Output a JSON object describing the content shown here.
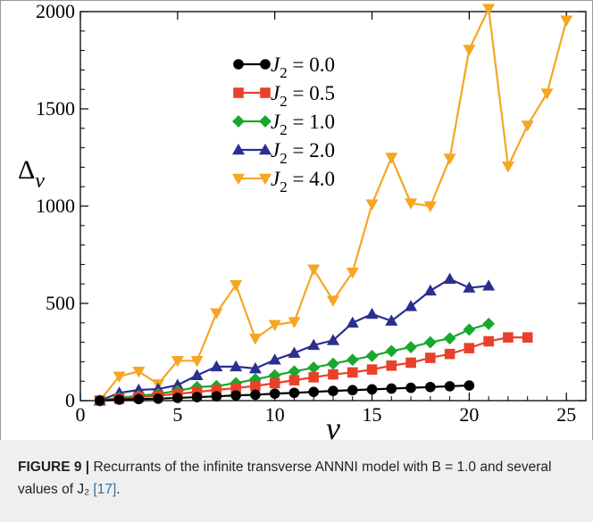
{
  "chart_data": {
    "type": "line",
    "xlabel": "ν",
    "ylabel": "Δ",
    "ylabel_sub": "ν",
    "xlim": [
      0,
      26
    ],
    "ylim": [
      0,
      2000
    ],
    "xticks": [
      0,
      5,
      10,
      15,
      20,
      25
    ],
    "yticks": [
      0,
      500,
      1000,
      1500,
      2000
    ],
    "legend_position": "top-center",
    "series": [
      {
        "name": "J2 = 0.0",
        "name_base": "J",
        "name_sub": "2",
        "name_value": " = 0.0",
        "color": "#000000",
        "marker": "circle",
        "x": [
          1,
          2,
          3,
          4,
          5,
          6,
          7,
          8,
          9,
          10,
          11,
          12,
          13,
          14,
          15,
          16,
          17,
          18,
          19,
          20
        ],
        "y": [
          0,
          5,
          8,
          10,
          14,
          18,
          22,
          27,
          30,
          36,
          40,
          45,
          50,
          54,
          58,
          62,
          66,
          70,
          74,
          78
        ]
      },
      {
        "name": "J2 = 0.5",
        "name_base": "J",
        "name_sub": "2",
        "name_value": " = 0.5",
        "color": "#e8412b",
        "marker": "square",
        "x": [
          1,
          2,
          3,
          4,
          5,
          6,
          7,
          8,
          9,
          10,
          11,
          12,
          13,
          14,
          15,
          16,
          17,
          18,
          19,
          20,
          21,
          22,
          23
        ],
        "y": [
          0,
          10,
          18,
          25,
          35,
          45,
          55,
          65,
          75,
          90,
          105,
          120,
          135,
          145,
          160,
          180,
          195,
          220,
          240,
          270,
          305,
          325,
          325
        ]
      },
      {
        "name": "J2 = 1.0",
        "name_base": "J",
        "name_sub": "2",
        "name_value": " = 1.0",
        "color": "#18a82e",
        "marker": "diamond",
        "x": [
          1,
          2,
          3,
          4,
          5,
          6,
          7,
          8,
          9,
          10,
          11,
          12,
          13,
          14,
          15,
          16,
          17,
          18,
          19,
          20,
          21
        ],
        "y": [
          0,
          15,
          25,
          35,
          50,
          70,
          75,
          90,
          110,
          130,
          150,
          170,
          190,
          210,
          230,
          255,
          275,
          300,
          320,
          365,
          395
        ]
      },
      {
        "name": "J2 = 2.0",
        "name_base": "J",
        "name_sub": "2",
        "name_value": " = 2.0",
        "color": "#2b2f8f",
        "marker": "triangle-up",
        "x": [
          1,
          2,
          3,
          4,
          5,
          6,
          7,
          8,
          9,
          10,
          11,
          12,
          13,
          14,
          15,
          16,
          17,
          18,
          19,
          20,
          21
        ],
        "y": [
          0,
          40,
          55,
          60,
          80,
          130,
          175,
          175,
          165,
          210,
          245,
          285,
          310,
          400,
          445,
          410,
          485,
          565,
          625,
          580,
          590
        ]
      },
      {
        "name": "J2 = 4.0",
        "name_base": "J",
        "name_sub": "2",
        "name_value": " = 4.0",
        "color": "#f5a623",
        "marker": "triangle-down",
        "x": [
          1,
          2,
          3,
          4,
          5,
          6,
          7,
          8,
          9,
          10,
          11,
          12,
          13,
          14,
          15,
          16,
          17,
          18,
          19,
          20,
          21,
          22,
          23,
          24,
          25
        ],
        "y": [
          0,
          125,
          150,
          85,
          205,
          205,
          450,
          595,
          320,
          390,
          405,
          675,
          515,
          660,
          1010,
          1250,
          1015,
          1000,
          1245,
          1805,
          2015,
          1205,
          1415,
          1580,
          1955
        ]
      }
    ]
  },
  "caption": {
    "label": "FIGURE 9 |",
    "text": " Recurrants of the infinite transverse ANNNI model with B = 1.0 and several values of J₂ ",
    "ref": "[17]",
    "end": "."
  }
}
